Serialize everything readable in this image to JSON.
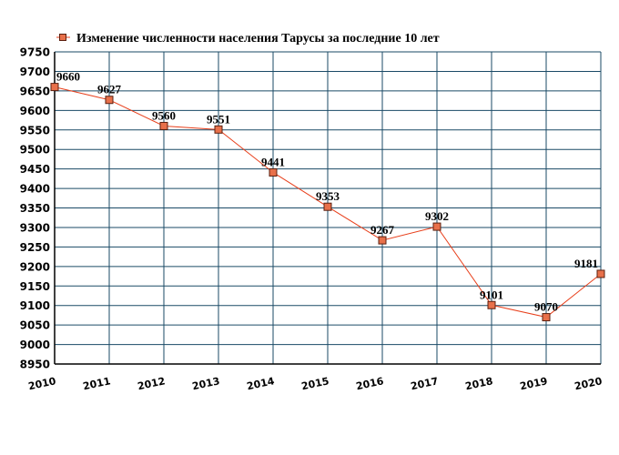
{
  "chart_data": {
    "type": "line",
    "title": "",
    "xlabel": "",
    "ylabel": "",
    "categories": [
      "2010",
      "2011",
      "2012",
      "2013",
      "2014",
      "2015",
      "2016",
      "2017",
      "2018",
      "2019",
      "2020"
    ],
    "series": [
      {
        "name": "Изменение численности населения Тарусы за последние 10 лет",
        "values": [
          9660,
          9627,
          9560,
          9551,
          9441,
          9353,
          9267,
          9302,
          9101,
          9070,
          9181
        ],
        "labels": [
          "9660",
          "9627",
          "9560",
          "9551",
          "9441",
          "9353",
          "9267",
          "9302",
          "9101",
          "9070",
          "9181"
        ]
      }
    ],
    "ylim": [
      8950,
      9750
    ],
    "yticks": [
      "8950",
      "9000",
      "9050",
      "9100",
      "9150",
      "9200",
      "9250",
      "9300",
      "9350",
      "9400",
      "9450",
      "9500",
      "9550",
      "9600",
      "9650",
      "9700",
      "9750"
    ],
    "grid": true,
    "legend": "top",
    "colors": {
      "line": "#e8401c",
      "marker_fill": "#e8704a",
      "marker_edge": "#5a2010",
      "grid": "#1a4a66",
      "axis": "#000000"
    }
  }
}
